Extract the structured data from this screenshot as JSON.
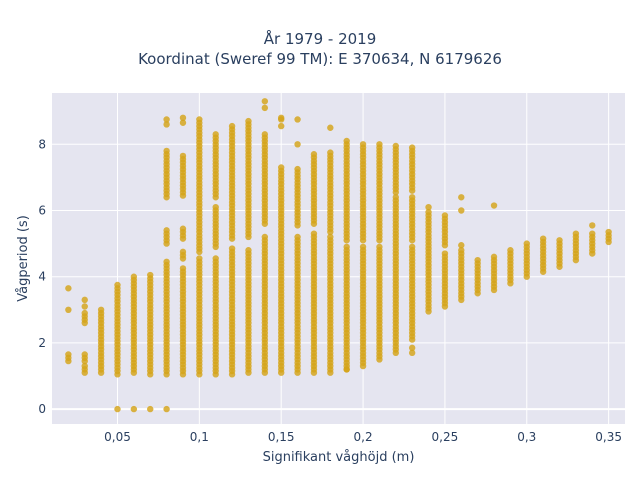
{
  "chart_data": {
    "type": "scatter",
    "title_line1": "År 1979 - 2019",
    "title_line2": "Koordinat (Sweref 99 TM): E 370634, N 6179626",
    "xlabel": "Signifikant våghöjd (m)",
    "ylabel": "Vågperiod (s)",
    "xlim": [
      0.01,
      0.36
    ],
    "ylim": [
      -0.45,
      9.55
    ],
    "x_ticks": [
      0.05,
      0.1,
      0.15,
      0.2,
      0.25,
      0.3,
      0.35
    ],
    "x_tick_labels": [
      "0,05",
      "0,1",
      "0,15",
      "0,2",
      "0,25",
      "0,3",
      "0,35"
    ],
    "y_ticks": [
      0,
      2,
      4,
      6,
      8
    ],
    "y_tick_labels": [
      "0",
      "2",
      "4",
      "6",
      "8"
    ],
    "grid": true,
    "marker_color": "#d4a418",
    "plot_bgcolor": "#e5e5f0",
    "columns": [
      {
        "x": 0.02,
        "ranges": [
          [
            1.45,
            1.65
          ]
        ],
        "points": [
          3.0,
          3.65
        ]
      },
      {
        "x": 0.03,
        "ranges": [
          [
            1.1,
            1.3
          ],
          [
            1.45,
            1.7
          ],
          [
            2.6,
            2.95
          ]
        ],
        "points": [
          3.1,
          3.3
        ]
      },
      {
        "x": 0.04,
        "ranges": [
          [
            1.1,
            3.05
          ]
        ],
        "points": []
      },
      {
        "x": 0.05,
        "ranges": [
          [
            1.05,
            3.8
          ]
        ],
        "points": [
          0.0
        ]
      },
      {
        "x": 0.06,
        "ranges": [
          [
            1.1,
            4.0
          ]
        ],
        "points": [
          0.0
        ]
      },
      {
        "x": 0.07,
        "ranges": [
          [
            1.05,
            4.1
          ]
        ],
        "points": [
          0.0
        ]
      },
      {
        "x": 0.08,
        "ranges": [
          [
            1.05,
            4.45
          ],
          [
            5.0,
            5.45
          ],
          [
            6.4,
            7.8
          ]
        ],
        "points": [
          0.0,
          8.6,
          8.75
        ]
      },
      {
        "x": 0.09,
        "ranges": [
          [
            1.05,
            4.3
          ],
          [
            4.55,
            4.75
          ],
          [
            5.15,
            5.45
          ],
          [
            6.45,
            7.7
          ]
        ],
        "points": [
          8.65,
          8.8
        ]
      },
      {
        "x": 0.1,
        "ranges": [
          [
            1.05,
            4.6
          ],
          [
            4.75,
            8.75
          ]
        ],
        "points": []
      },
      {
        "x": 0.11,
        "ranges": [
          [
            1.05,
            4.6
          ],
          [
            4.9,
            6.1
          ],
          [
            6.4,
            8.3
          ]
        ],
        "points": []
      },
      {
        "x": 0.12,
        "ranges": [
          [
            1.05,
            4.85
          ],
          [
            5.15,
            8.55
          ]
        ],
        "points": []
      },
      {
        "x": 0.13,
        "ranges": [
          [
            1.1,
            4.85
          ],
          [
            5.2,
            8.75
          ]
        ],
        "points": []
      },
      {
        "x": 0.14,
        "ranges": [
          [
            1.1,
            5.2
          ],
          [
            5.6,
            8.35
          ]
        ],
        "points": [
          9.1,
          9.3
        ]
      },
      {
        "x": 0.15,
        "ranges": [
          [
            1.1,
            7.3
          ]
        ],
        "points": [
          8.55,
          8.75,
          8.8
        ]
      },
      {
        "x": 0.16,
        "ranges": [
          [
            1.1,
            5.2
          ],
          [
            5.55,
            7.3
          ]
        ],
        "points": [
          8.0,
          8.75
        ]
      },
      {
        "x": 0.17,
        "ranges": [
          [
            1.1,
            5.3
          ],
          [
            5.6,
            7.7
          ]
        ],
        "points": []
      },
      {
        "x": 0.18,
        "ranges": [
          [
            1.1,
            5.2
          ],
          [
            5.35,
            7.8
          ]
        ],
        "points": [
          8.5
        ]
      },
      {
        "x": 0.19,
        "ranges": [
          [
            1.2,
            4.9
          ],
          [
            5.1,
            8.15
          ]
        ],
        "points": [
          1.2
        ]
      },
      {
        "x": 0.2,
        "ranges": [
          [
            1.4,
            4.9
          ],
          [
            5.1,
            8.0
          ]
        ],
        "points": [
          1.3
        ]
      },
      {
        "x": 0.21,
        "ranges": [
          [
            1.6,
            4.9
          ],
          [
            5.1,
            8.0
          ]
        ],
        "points": [
          1.5
        ]
      },
      {
        "x": 0.22,
        "ranges": [
          [
            1.7,
            2.2
          ],
          [
            2.3,
            6.45
          ],
          [
            6.55,
            8.0
          ]
        ],
        "points": []
      },
      {
        "x": 0.23,
        "ranges": [
          [
            2.1,
            4.9
          ],
          [
            5.1,
            6.4
          ],
          [
            6.6,
            7.95
          ]
        ],
        "points": [
          1.7,
          1.85
        ]
      },
      {
        "x": 0.24,
        "ranges": [
          [
            2.95,
            5.95
          ]
        ],
        "points": [
          6.1
        ]
      },
      {
        "x": 0.25,
        "ranges": [
          [
            3.1,
            4.75
          ],
          [
            4.95,
            5.9
          ]
        ],
        "points": []
      },
      {
        "x": 0.26,
        "ranges": [
          [
            3.3,
            4.8
          ]
        ],
        "points": [
          4.95,
          6.0,
          6.4
        ]
      },
      {
        "x": 0.27,
        "ranges": [
          [
            3.5,
            4.5
          ]
        ],
        "points": []
      },
      {
        "x": 0.28,
        "ranges": [
          [
            3.6,
            4.6
          ]
        ],
        "points": [
          6.15
        ]
      },
      {
        "x": 0.29,
        "ranges": [
          [
            3.8,
            4.8
          ]
        ],
        "points": []
      },
      {
        "x": 0.3,
        "ranges": [
          [
            4.0,
            5.0
          ]
        ],
        "points": []
      },
      {
        "x": 0.31,
        "ranges": [
          [
            4.15,
            5.15
          ]
        ],
        "points": []
      },
      {
        "x": 0.32,
        "ranges": [
          [
            4.3,
            5.15
          ]
        ],
        "points": []
      },
      {
        "x": 0.33,
        "ranges": [
          [
            4.5,
            5.3
          ]
        ],
        "points": []
      },
      {
        "x": 0.34,
        "ranges": [
          [
            4.7,
            5.35
          ]
        ],
        "points": [
          5.55
        ]
      },
      {
        "x": 0.35,
        "ranges": [
          [
            5.05,
            5.35
          ]
        ],
        "points": []
      }
    ]
  }
}
